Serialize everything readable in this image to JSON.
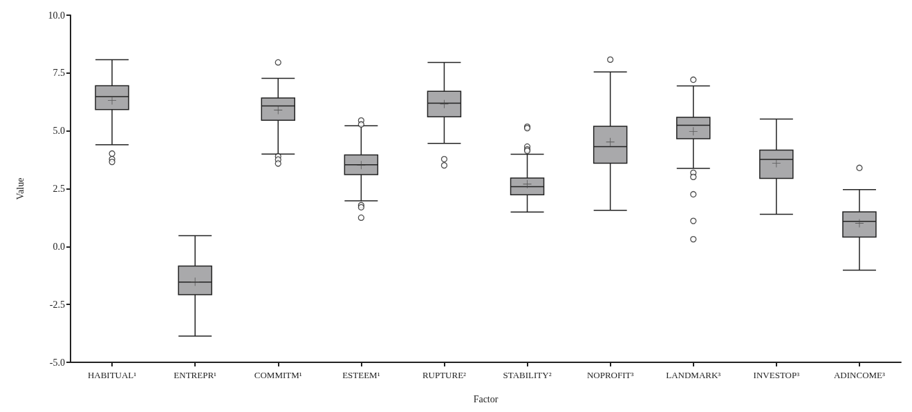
{
  "chart_data": {
    "type": "box",
    "xlabel": "Factor",
    "ylabel": "Value",
    "color": "#a9a9ab",
    "categories": [
      "HABITUAL¹",
      "ENTREPR¹",
      "COMMITM¹",
      "ESTEEM¹",
      "RUPTURE²",
      "STABILITY²",
      "NOPROFIT³",
      "LANDMARK³",
      "INVESTOP³",
      "ADINCOME³"
    ],
    "boxes": [
      {
        "low": 4.4,
        "q1": 5.92,
        "median": 6.48,
        "q3": 6.95,
        "high": 8.08,
        "mean": 6.32,
        "outliers": [
          4.02,
          3.78,
          3.66
        ]
      },
      {
        "low": -3.87,
        "q1": -2.08,
        "median": -1.53,
        "q3": -0.84,
        "high": 0.47,
        "mean": -1.52
      },
      {
        "low": 4.0,
        "q1": 5.46,
        "median": 6.08,
        "q3": 6.42,
        "high": 7.27,
        "mean": 5.9,
        "outliers": [
          7.96,
          3.9,
          3.76,
          3.59
        ]
      },
      {
        "low": 1.98,
        "q1": 3.11,
        "median": 3.54,
        "q3": 3.96,
        "high": 5.22,
        "mean": 3.52,
        "outliers": [
          5.45,
          5.28,
          1.79,
          1.7,
          1.25
        ]
      },
      {
        "low": 4.46,
        "q1": 5.61,
        "median": 6.2,
        "q3": 6.71,
        "high": 7.96,
        "mean": 6.16,
        "outliers": [
          3.78,
          3.51
        ]
      },
      {
        "low": 1.49,
        "q1": 2.24,
        "median": 2.59,
        "q3": 2.96,
        "high": 3.99,
        "mean": 2.7,
        "outliers": [
          5.18,
          5.12,
          4.32,
          4.2,
          4.14
        ]
      },
      {
        "low": 1.57,
        "q1": 3.6,
        "median": 4.32,
        "q3": 5.2,
        "high": 7.55,
        "mean": 4.52,
        "outliers": [
          8.08
        ]
      },
      {
        "low": 3.38,
        "q1": 4.66,
        "median": 5.24,
        "q3": 5.59,
        "high": 6.94,
        "mean": 4.98,
        "outliers": [
          7.21,
          3.19,
          3.01,
          2.26,
          1.11,
          0.32
        ]
      },
      {
        "low": 1.4,
        "q1": 2.95,
        "median": 3.77,
        "q3": 4.17,
        "high": 5.51,
        "mean": 3.6
      },
      {
        "low": -1.02,
        "q1": 0.41,
        "median": 1.09,
        "q3": 1.5,
        "high": 2.46,
        "mean": 1.01,
        "outliers": [
          3.4
        ]
      }
    ],
    "ylim": [
      -5,
      10
    ],
    "yticks": [
      {
        "value": -5,
        "label": "-5.0"
      },
      {
        "value": -2.5,
        "label": "-2.5"
      },
      {
        "value": 0,
        "label": "0.0"
      },
      {
        "value": 2.5,
        "label": "2.5"
      },
      {
        "value": 5,
        "label": "5.0"
      },
      {
        "value": 7.5,
        "label": "7.5"
      },
      {
        "value": 10,
        "label": "10.0"
      }
    ]
  }
}
